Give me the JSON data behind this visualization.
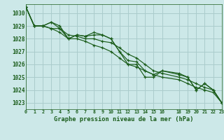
{
  "title": "Graphe pression niveau de la mer (hPa)",
  "bg_color": "#cce8e8",
  "grid_color": "#aacccc",
  "line_color": "#1a5c1a",
  "xlim": [
    0,
    23
  ],
  "ylim": [
    1022.5,
    1030.7
  ],
  "yticks": [
    1023,
    1024,
    1025,
    1026,
    1027,
    1028,
    1029,
    1030
  ],
  "xtick_positions": [
    0,
    1,
    2,
    3,
    4,
    5,
    6,
    7,
    8,
    9,
    10,
    11,
    12,
    13,
    14,
    15,
    16,
    18,
    19,
    20,
    21,
    22,
    23
  ],
  "xtick_labels": [
    "0",
    "1",
    "2",
    "3",
    "4",
    "5",
    "6",
    "7",
    "8",
    "9",
    "10",
    "11",
    "12",
    "13",
    "14",
    "15",
    "16",
    "18",
    "19",
    "20",
    "21",
    "22",
    "23"
  ],
  "series": [
    {
      "x": [
        0,
        1,
        2,
        3,
        4,
        5,
        6,
        7,
        8,
        9,
        10,
        11,
        12,
        13,
        14,
        15,
        16,
        18,
        19,
        20,
        21,
        22,
        23
      ],
      "y": [
        1030.5,
        1029.0,
        1029.0,
        1029.3,
        1029.0,
        1028.0,
        1028.3,
        1028.2,
        1028.5,
        1028.3,
        1028.0,
        1027.0,
        1026.0,
        1026.0,
        1025.0,
        1025.0,
        1025.5,
        1025.2,
        1025.0,
        1024.0,
        1024.5,
        1024.0,
        1023.0
      ]
    },
    {
      "x": [
        0,
        1,
        2,
        3,
        4,
        5,
        6,
        7,
        8,
        9,
        10,
        11,
        12,
        13,
        14,
        15,
        16,
        18,
        19,
        20,
        21,
        22,
        23
      ],
      "y": [
        1030.5,
        1029.0,
        1029.0,
        1028.8,
        1028.8,
        1028.3,
        1028.2,
        1028.0,
        1028.0,
        1027.8,
        1027.7,
        1027.3,
        1026.8,
        1026.5,
        1026.0,
        1025.5,
        1025.3,
        1025.0,
        1024.8,
        1024.5,
        1024.2,
        1024.0,
        1023.0
      ]
    },
    {
      "x": [
        0,
        1,
        2,
        3,
        4,
        5,
        6,
        7,
        8,
        9,
        10,
        11,
        12,
        13,
        14,
        15,
        16,
        18,
        19,
        20,
        21,
        22,
        23
      ],
      "y": [
        1030.5,
        1029.0,
        1029.0,
        1029.3,
        1028.8,
        1028.0,
        1028.3,
        1028.2,
        1028.3,
        1028.3,
        1028.0,
        1027.0,
        1026.3,
        1026.2,
        1025.5,
        1025.2,
        1025.5,
        1025.3,
        1025.0,
        1024.0,
        1024.5,
        1024.0,
        1023.0
      ]
    },
    {
      "x": [
        0,
        1,
        2,
        3,
        4,
        5,
        6,
        7,
        8,
        9,
        10,
        11,
        12,
        13,
        14,
        15,
        16,
        18,
        19,
        20,
        21,
        22,
        23
      ],
      "y": [
        1030.5,
        1029.0,
        1029.0,
        1028.8,
        1028.5,
        1028.0,
        1028.0,
        1027.8,
        1027.5,
        1027.3,
        1027.0,
        1026.5,
        1026.0,
        1025.8,
        1025.5,
        1025.2,
        1025.0,
        1024.8,
        1024.5,
        1024.2,
        1024.0,
        1023.8,
        1023.0
      ]
    }
  ]
}
